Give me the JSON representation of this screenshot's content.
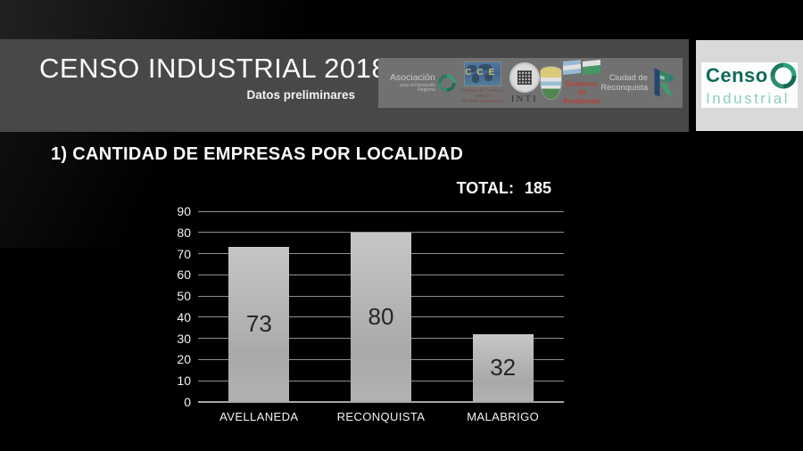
{
  "header": {
    "title": "CENSO INDUSTRIAL 2018",
    "subtitle": "Datos preliminares",
    "logos": [
      {
        "id": "asociacion-desarrollo-regional",
        "line1": "Asociación",
        "line2": "para el Desarrollo Regional"
      },
      {
        "id": "camara-comercio-exterior",
        "letters": "CCE",
        "caption1": "Cámara de Comercio Exterior",
        "caption2": "del Norte Santafesino"
      },
      {
        "id": "inti",
        "label": "INTI"
      },
      {
        "id": "escudo-avellaneda"
      },
      {
        "id": "gobierno-avellaneda",
        "line1": "Gobierno de",
        "line2": "Avellaneda"
      },
      {
        "id": "ciudad-reconquista",
        "line1": "Ciudad de",
        "line2": "Reconquista"
      }
    ]
  },
  "brand": {
    "word1": "Censo",
    "word2": "Industrial",
    "accent_dark": "#0f6b5a",
    "accent_light": "#8fd0b4"
  },
  "chart_data": {
    "type": "bar",
    "title": "1) CANTIDAD DE EMPRESAS POR LOCALIDAD",
    "total_label": "TOTAL:",
    "total_value": "185",
    "categories": [
      "AVELLANEDA",
      "RECONQUISTA",
      "MALABRIGO"
    ],
    "values": [
      73,
      80,
      32
    ],
    "xlabel": "",
    "ylabel": "",
    "ylim": [
      0,
      90
    ],
    "yticks": [
      0,
      10,
      20,
      30,
      40,
      50,
      60,
      70,
      80,
      90
    ],
    "grid": true,
    "legend": false,
    "bar_color": "#b5b5b5",
    "value_label_color": "#262626"
  }
}
